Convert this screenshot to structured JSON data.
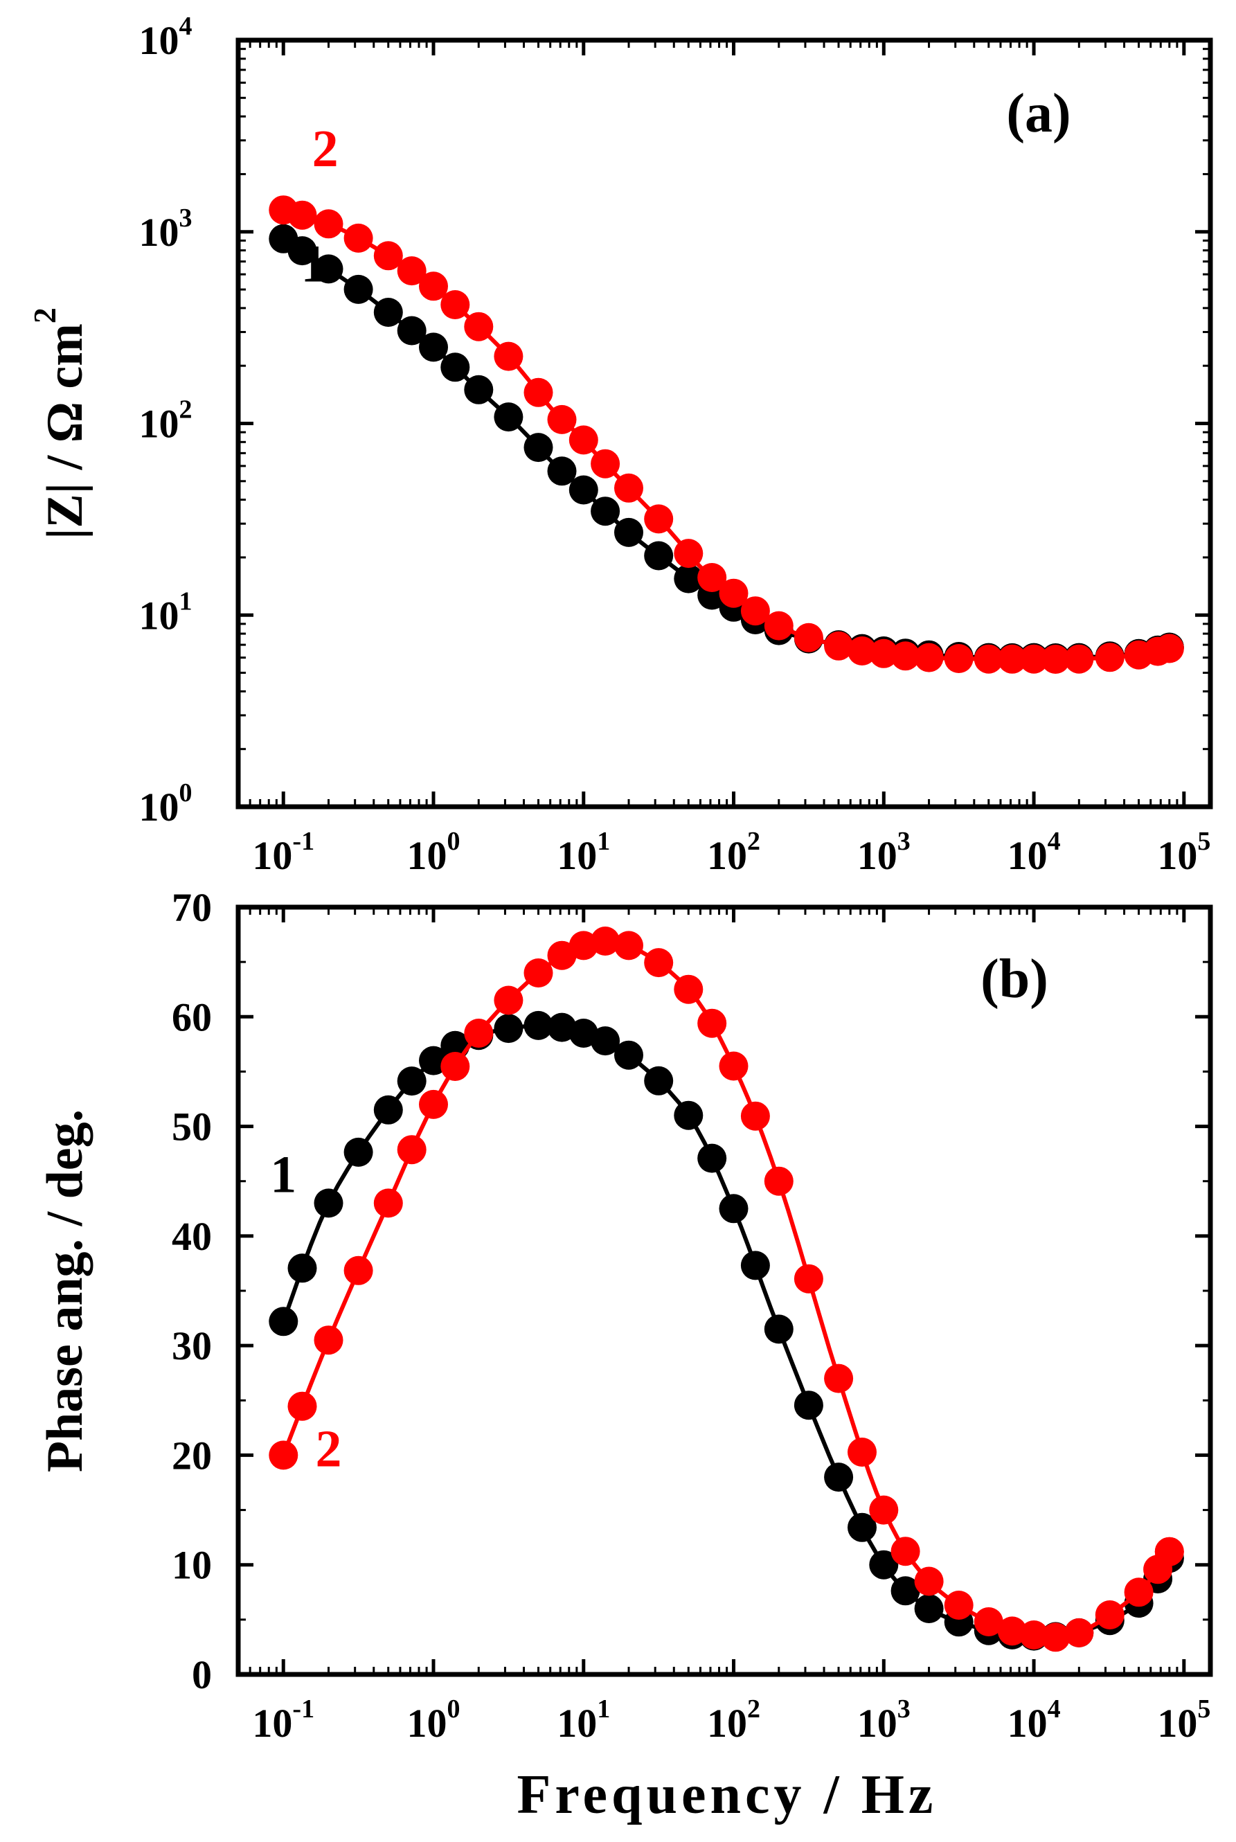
{
  "xlabel": "Frequency / Hz",
  "colors": {
    "series1": "#000000",
    "series2": "#ff0000",
    "axis": "#000000"
  },
  "chart_data": [
    {
      "type": "scatter",
      "panel_label": "(a)",
      "title": "",
      "xlabel": "Frequency / Hz",
      "ylabel": {
        "main": "|Z| / Ω cm",
        "superscript": "2"
      },
      "xscale": "log",
      "yscale": "log",
      "xlim": [
        0.05,
        150000
      ],
      "ylim": [
        1,
        10000
      ],
      "x_ticks": [
        {
          "value": 0.1,
          "base": "10",
          "exp": "-1"
        },
        {
          "value": 1,
          "base": "10",
          "exp": "0"
        },
        {
          "value": 10,
          "base": "10",
          "exp": "1"
        },
        {
          "value": 100,
          "base": "10",
          "exp": "2"
        },
        {
          "value": 1000,
          "base": "10",
          "exp": "3"
        },
        {
          "value": 10000,
          "base": "10",
          "exp": "4"
        },
        {
          "value": 100000,
          "base": "10",
          "exp": "5"
        }
      ],
      "y_ticks": [
        {
          "value": 1,
          "base": "10",
          "exp": "0"
        },
        {
          "value": 10,
          "base": "10",
          "exp": "1"
        },
        {
          "value": 100,
          "base": "10",
          "exp": "2"
        },
        {
          "value": 1000,
          "base": "10",
          "exp": "3"
        },
        {
          "value": 10000,
          "base": "10",
          "exp": "4"
        }
      ],
      "series_labels": [
        {
          "text": "1",
          "series": "1",
          "x": 0.16,
          "y": 550
        },
        {
          "text": "2",
          "series": "2",
          "x": 0.19,
          "y": 2200
        }
      ],
      "series": [
        {
          "name": "1",
          "color": "#000000",
          "points": [
            [
              0.1,
              920
            ],
            [
              0.2,
              640
            ],
            [
              0.5,
              380
            ],
            [
              1,
              250
            ],
            [
              2,
              150
            ],
            [
              5,
              75
            ],
            [
              10,
              45
            ],
            [
              20,
              27
            ],
            [
              50,
              15.5
            ],
            [
              100,
              11
            ],
            [
              200,
              8.3
            ],
            [
              500,
              7.0
            ],
            [
              1000,
              6.5
            ],
            [
              2000,
              6.2
            ],
            [
              5000,
              6.0
            ],
            [
              10000,
              6.0
            ],
            [
              20000,
              6.0
            ],
            [
              50000,
              6.3
            ],
            [
              80000,
              6.8
            ]
          ]
        },
        {
          "name": "2",
          "color": "#ff0000",
          "points": [
            [
              0.1,
              1300
            ],
            [
              0.2,
              1100
            ],
            [
              0.5,
              750
            ],
            [
              1,
              520
            ],
            [
              2,
              320
            ],
            [
              5,
              145
            ],
            [
              10,
              82
            ],
            [
              20,
              46
            ],
            [
              50,
              21
            ],
            [
              100,
              13
            ],
            [
              200,
              8.8
            ],
            [
              500,
              6.9
            ],
            [
              1000,
              6.3
            ],
            [
              2000,
              6.0
            ],
            [
              5000,
              5.9
            ],
            [
              10000,
              5.9
            ],
            [
              20000,
              5.9
            ],
            [
              50000,
              6.2
            ],
            [
              80000,
              6.7
            ]
          ]
        }
      ]
    },
    {
      "type": "scatter",
      "panel_label": "(b)",
      "title": "",
      "xlabel": "Frequency / Hz",
      "ylabel": {
        "main": "Phase ang. / deg.",
        "superscript": ""
      },
      "xscale": "log",
      "yscale": "linear",
      "xlim": [
        0.05,
        150000
      ],
      "ylim": [
        0,
        70
      ],
      "x_ticks": [
        {
          "value": 0.1,
          "base": "10",
          "exp": "-1"
        },
        {
          "value": 1,
          "base": "10",
          "exp": "0"
        },
        {
          "value": 10,
          "base": "10",
          "exp": "1"
        },
        {
          "value": 100,
          "base": "10",
          "exp": "2"
        },
        {
          "value": 1000,
          "base": "10",
          "exp": "3"
        },
        {
          "value": 10000,
          "base": "10",
          "exp": "4"
        },
        {
          "value": 100000,
          "base": "10",
          "exp": "5"
        }
      ],
      "y_ticks": [
        {
          "value": 0,
          "label": "0"
        },
        {
          "value": 10,
          "label": "10"
        },
        {
          "value": 20,
          "label": "20"
        },
        {
          "value": 30,
          "label": "30"
        },
        {
          "value": 40,
          "label": "40"
        },
        {
          "value": 50,
          "label": "50"
        },
        {
          "value": 60,
          "label": "60"
        },
        {
          "value": 70,
          "label": "70"
        }
      ],
      "series_labels": [
        {
          "text": "1",
          "series": "1",
          "x": 0.1,
          "y": 44
        },
        {
          "text": "2",
          "series": "2",
          "x": 0.2,
          "y": 19
        }
      ],
      "series": [
        {
          "name": "1",
          "color": "#000000",
          "points": [
            [
              0.1,
              32.2
            ],
            [
              0.2,
              43.0
            ],
            [
              0.5,
              51.5
            ],
            [
              1,
              56.0
            ],
            [
              2,
              58.3
            ],
            [
              5,
              59.2
            ],
            [
              10,
              58.5
            ],
            [
              20,
              56.5
            ],
            [
              50,
              51.0
            ],
            [
              100,
              42.5
            ],
            [
              200,
              31.5
            ],
            [
              500,
              18.0
            ],
            [
              1000,
              10.0
            ],
            [
              2000,
              6.0
            ],
            [
              5000,
              4.0
            ],
            [
              10000,
              3.5
            ],
            [
              20000,
              3.8
            ],
            [
              50000,
              6.5
            ],
            [
              80000,
              10.6
            ]
          ]
        },
        {
          "name": "2",
          "color": "#ff0000",
          "points": [
            [
              0.1,
              20.0
            ],
            [
              0.2,
              30.5
            ],
            [
              0.5,
              43.0
            ],
            [
              1,
              52.0
            ],
            [
              2,
              58.5
            ],
            [
              5,
              64.0
            ],
            [
              10,
              66.5
            ],
            [
              20,
              66.5
            ],
            [
              50,
              62.5
            ],
            [
              100,
              55.5
            ],
            [
              200,
              45.0
            ],
            [
              500,
              27.0
            ],
            [
              1000,
              15.0
            ],
            [
              2000,
              8.5
            ],
            [
              5000,
              4.8
            ],
            [
              10000,
              3.6
            ],
            [
              20000,
              3.8
            ],
            [
              50000,
              7.5
            ],
            [
              80000,
              11.2
            ]
          ]
        }
      ]
    }
  ]
}
